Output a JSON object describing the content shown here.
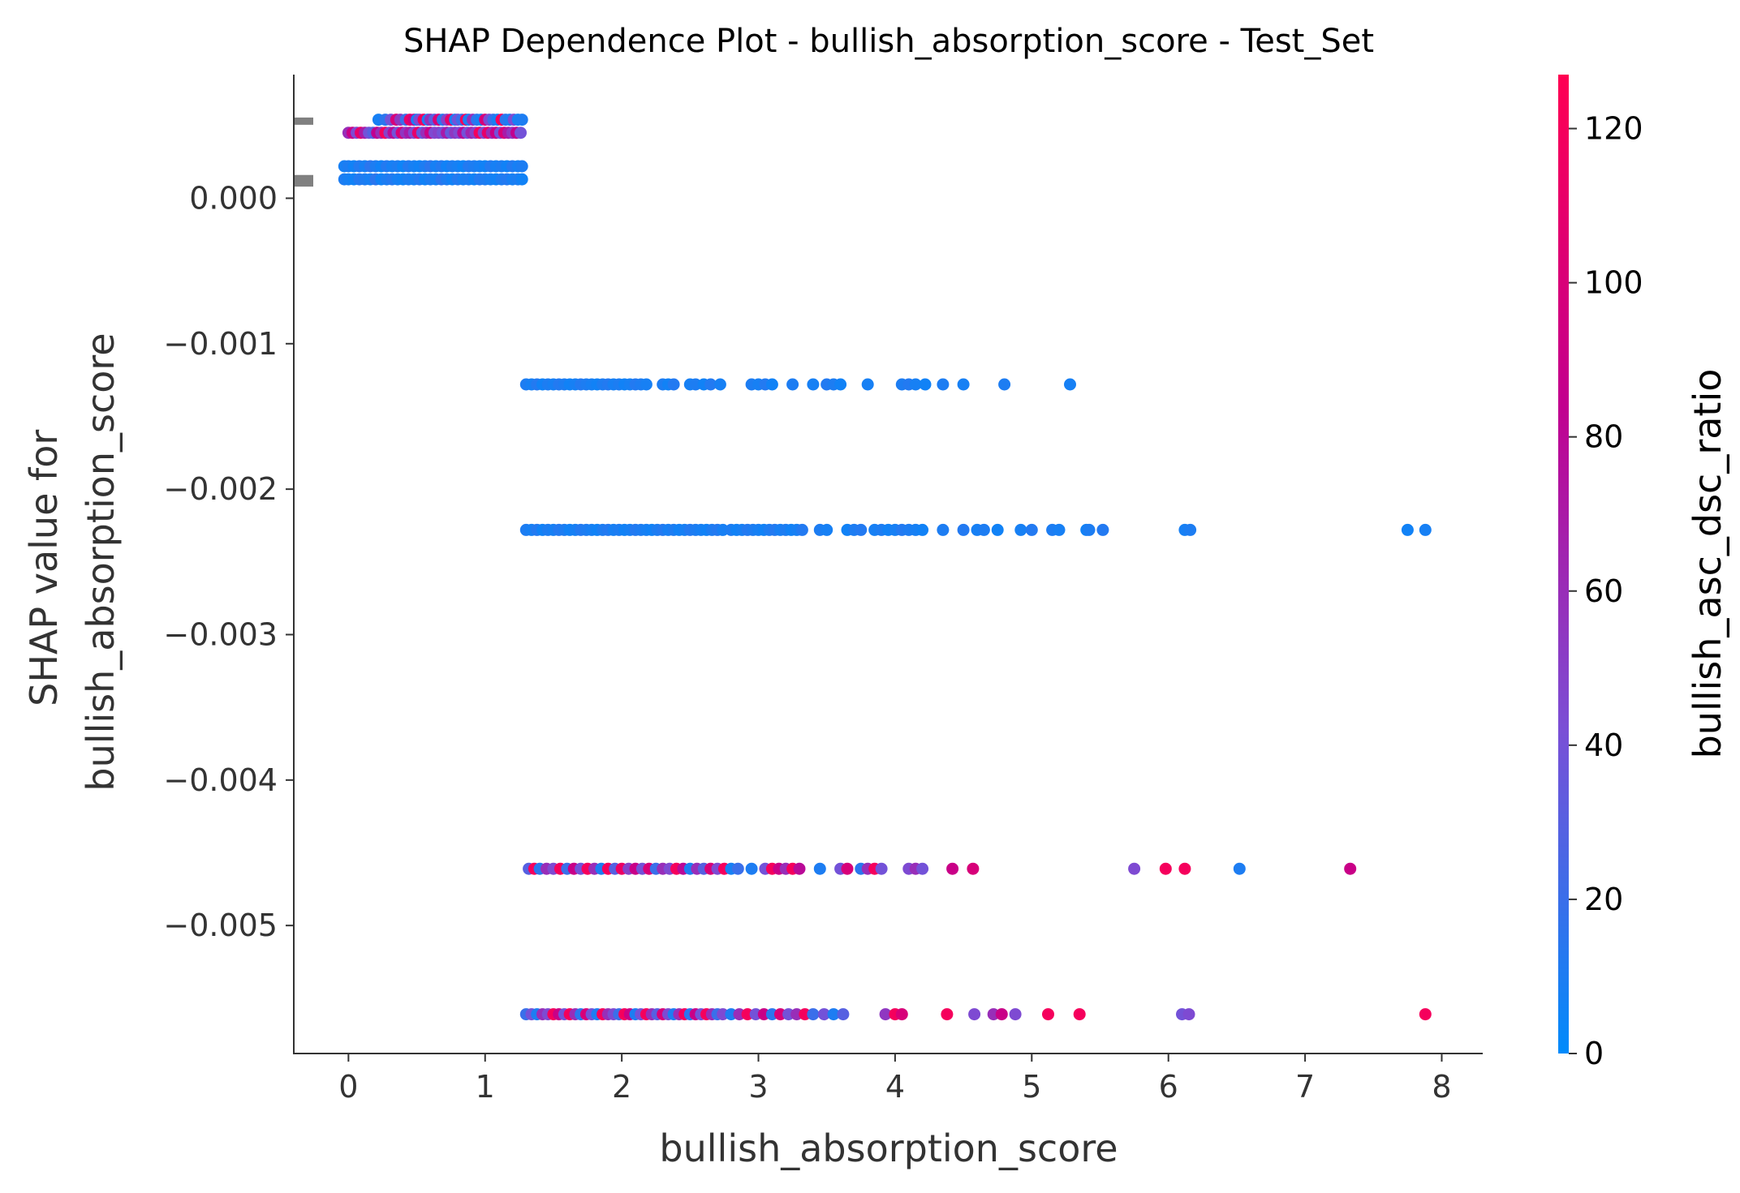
{
  "chart_data": {
    "type": "scatter",
    "title": "SHAP Dependence Plot - bullish_absorption_score - Test_Set",
    "xlabel": "bullish_absorption_score",
    "ylabel_lines": [
      "SHAP value for",
      "bullish_absorption_score"
    ],
    "xlim": [
      -0.4,
      8.3
    ],
    "ylim": [
      -0.00588,
      0.00085
    ],
    "x_ticks": [
      0,
      1,
      2,
      3,
      4,
      5,
      6,
      7,
      8
    ],
    "x_tick_labels": [
      "0",
      "1",
      "2",
      "3",
      "4",
      "5",
      "6",
      "7",
      "8"
    ],
    "y_ticks": [
      0.0,
      -0.001,
      -0.002,
      -0.003,
      -0.004,
      -0.005
    ],
    "y_tick_labels": [
      "0.000",
      "−0.001",
      "−0.002",
      "−0.003",
      "−0.004",
      "−0.005"
    ],
    "colorbar": {
      "label": "bullish_asc_dsc_ratio",
      "range": [
        0,
        127
      ],
      "ticks": [
        0,
        20,
        40,
        60,
        80,
        100,
        120
      ],
      "tick_labels": [
        "0",
        "20",
        "40",
        "60",
        "80",
        "100",
        "120"
      ],
      "colors": [
        "#008bfb",
        "#7a4fd6",
        "#c1008f",
        "#ff0052"
      ]
    },
    "histogram_marks": [
      {
        "y": 0.00053,
        "height": 5e-05
      },
      {
        "y": 0.00012,
        "height": 8e-05
      }
    ],
    "series": [
      {
        "y": 0.00054,
        "x": [
          0.22,
          0.27,
          0.31,
          0.35,
          0.38,
          0.42,
          0.45,
          0.48,
          0.5,
          0.52,
          0.55,
          0.58,
          0.6,
          0.63,
          0.66,
          0.69,
          0.72,
          0.75,
          0.78,
          0.8,
          0.83,
          0.86,
          0.88,
          0.91,
          0.94,
          0.97,
          1.0,
          1.03,
          1.06,
          1.09,
          1.12,
          1.15,
          1.18,
          1.21,
          1.24,
          1.27
        ],
        "c": [
          8,
          15,
          40,
          100,
          55,
          20,
          110,
          90,
          8,
          45,
          120,
          10,
          60,
          30,
          100,
          15,
          50,
          110,
          8,
          40,
          20,
          120,
          10,
          60,
          15,
          8,
          100,
          45,
          20,
          8,
          120,
          15,
          10,
          45,
          8,
          10
        ]
      },
      {
        "y": 0.00045,
        "x": [
          0.0,
          0.03,
          0.06,
          0.09,
          0.12,
          0.15,
          0.18,
          0.21,
          0.24,
          0.27,
          0.3,
          0.33,
          0.36,
          0.39,
          0.42,
          0.45,
          0.48,
          0.51,
          0.54,
          0.57,
          0.6,
          0.63,
          0.66,
          0.69,
          0.72,
          0.75,
          0.78,
          0.81,
          0.84,
          0.87,
          0.9,
          0.93,
          0.96,
          0.99,
          1.02,
          1.05,
          1.08,
          1.11,
          1.14,
          1.17,
          1.2,
          1.23,
          1.26
        ],
        "c": [
          60,
          90,
          45,
          110,
          70,
          40,
          30,
          85,
          60,
          120,
          50,
          80,
          40,
          100,
          55,
          70,
          45,
          110,
          35,
          60,
          90,
          45,
          50,
          40,
          70,
          35,
          55,
          45,
          80,
          40,
          65,
          50,
          120,
          45,
          110,
          60,
          90,
          40,
          100,
          70,
          55,
          85,
          40
        ]
      },
      {
        "y": 0.00022,
        "x": [
          -0.03,
          0.0,
          0.04,
          0.08,
          0.12,
          0.16,
          0.2,
          0.24,
          0.28,
          0.32,
          0.36,
          0.4,
          0.44,
          0.48,
          0.52,
          0.56,
          0.6,
          0.64,
          0.68,
          0.72,
          0.76,
          0.8,
          0.84,
          0.88,
          0.92,
          0.96,
          1.0,
          1.04,
          1.08,
          1.12,
          1.16,
          1.2,
          1.24,
          1.27
        ],
        "c": [
          8,
          10,
          6,
          12,
          8,
          15,
          10,
          6,
          12,
          8,
          10,
          5,
          12,
          8,
          6,
          10,
          15,
          8,
          12,
          6,
          10,
          8,
          5,
          12,
          10,
          8,
          6,
          12,
          8,
          10,
          6,
          12,
          8,
          10
        ]
      },
      {
        "y": 0.00013,
        "x": [
          -0.03,
          0.0,
          0.04,
          0.08,
          0.12,
          0.16,
          0.2,
          0.24,
          0.28,
          0.32,
          0.36,
          0.4,
          0.44,
          0.48,
          0.52,
          0.56,
          0.6,
          0.64,
          0.68,
          0.72,
          0.76,
          0.8,
          0.84,
          0.88,
          0.92,
          0.96,
          1.0,
          1.04,
          1.08,
          1.12,
          1.16,
          1.2,
          1.24,
          1.27
        ],
        "c": [
          10,
          8,
          6,
          12,
          10,
          8,
          15,
          6,
          10,
          12,
          8,
          6,
          10,
          8,
          12,
          6,
          10,
          8,
          15,
          10,
          6,
          12,
          8,
          10,
          6,
          12,
          10,
          8,
          6,
          10,
          12,
          8,
          10,
          6
        ]
      },
      {
        "y": -0.00128,
        "x": [
          1.3,
          1.34,
          1.38,
          1.42,
          1.46,
          1.5,
          1.54,
          1.58,
          1.62,
          1.66,
          1.7,
          1.74,
          1.78,
          1.82,
          1.86,
          1.9,
          1.94,
          1.98,
          2.02,
          2.06,
          2.1,
          2.14,
          2.18,
          2.3,
          2.34,
          2.38,
          2.5,
          2.54,
          2.6,
          2.65,
          2.72,
          2.95,
          3.0,
          3.05,
          3.1,
          3.25,
          3.4,
          3.5,
          3.55,
          3.6,
          3.8,
          4.05,
          4.1,
          4.15,
          4.22,
          4.35,
          4.5,
          4.8,
          5.28
        ],
        "c": [
          10,
          8,
          12,
          6,
          10,
          8,
          12,
          10,
          6,
          8,
          12,
          10,
          8,
          6,
          10,
          12,
          8,
          10,
          6,
          8,
          12,
          10,
          8,
          10,
          6,
          12,
          8,
          10,
          6,
          12,
          8,
          10,
          8,
          12,
          6,
          10,
          8,
          12,
          10,
          6,
          8,
          10,
          12,
          8,
          6,
          10,
          8,
          10,
          8
        ]
      },
      {
        "y": -0.00228,
        "x": [
          1.3,
          1.34,
          1.38,
          1.42,
          1.46,
          1.5,
          1.54,
          1.58,
          1.62,
          1.66,
          1.7,
          1.74,
          1.78,
          1.82,
          1.86,
          1.9,
          1.94,
          1.98,
          2.02,
          2.06,
          2.1,
          2.14,
          2.18,
          2.22,
          2.26,
          2.3,
          2.34,
          2.38,
          2.42,
          2.46,
          2.5,
          2.54,
          2.58,
          2.62,
          2.66,
          2.7,
          2.74,
          2.8,
          2.84,
          2.88,
          2.92,
          2.96,
          3.0,
          3.04,
          3.08,
          3.12,
          3.16,
          3.2,
          3.24,
          3.28,
          3.32,
          3.45,
          3.5,
          3.65,
          3.7,
          3.75,
          3.85,
          3.9,
          3.95,
          4.0,
          4.05,
          4.1,
          4.15,
          4.2,
          4.35,
          4.5,
          4.6,
          4.65,
          4.75,
          4.92,
          5.0,
          5.15,
          5.2,
          5.4,
          5.42,
          5.52,
          6.12,
          6.16,
          7.75,
          7.88
        ],
        "c": [
          10,
          8,
          12,
          6,
          10,
          8,
          12,
          10,
          6,
          8,
          12,
          10,
          8,
          6,
          10,
          12,
          8,
          10,
          6,
          8,
          12,
          10,
          8,
          6,
          10,
          12,
          8,
          10,
          6,
          8,
          12,
          10,
          8,
          6,
          10,
          12,
          8,
          10,
          6,
          8,
          12,
          10,
          8,
          6,
          10,
          12,
          8,
          10,
          6,
          8,
          12,
          10,
          8,
          6,
          10,
          12,
          8,
          10,
          6,
          8,
          12,
          10,
          8,
          6,
          10,
          12,
          8,
          10,
          6,
          8,
          12,
          10,
          8,
          6,
          10,
          12,
          8,
          10,
          6,
          8
        ]
      },
      {
        "y": -0.00461,
        "x": [
          1.32,
          1.36,
          1.4,
          1.45,
          1.5,
          1.55,
          1.6,
          1.65,
          1.7,
          1.75,
          1.8,
          1.85,
          1.9,
          1.95,
          2.0,
          2.05,
          2.1,
          2.15,
          2.2,
          2.25,
          2.3,
          2.35,
          2.4,
          2.45,
          2.5,
          2.55,
          2.6,
          2.65,
          2.7,
          2.75,
          2.8,
          2.85,
          2.95,
          3.05,
          3.1,
          3.15,
          3.2,
          3.25,
          3.3,
          3.45,
          3.6,
          3.65,
          3.75,
          3.8,
          3.85,
          3.9,
          4.1,
          4.15,
          4.2,
          4.42,
          4.57,
          5.75,
          5.98,
          6.12,
          6.52,
          7.33
        ],
        "c": [
          30,
          120,
          15,
          60,
          45,
          120,
          20,
          90,
          40,
          120,
          60,
          10,
          120,
          30,
          115,
          50,
          90,
          40,
          100,
          20,
          60,
          45,
          120,
          80,
          10,
          60,
          30,
          100,
          45,
          120,
          8,
          20,
          10,
          40,
          120,
          90,
          60,
          120,
          80,
          10,
          40,
          100,
          15,
          60,
          120,
          40,
          45,
          60,
          40,
          90,
          100,
          45,
          120,
          120,
          10,
          90
        ]
      },
      {
        "y": -0.00561,
        "x": [
          1.3,
          1.34,
          1.38,
          1.42,
          1.46,
          1.5,
          1.54,
          1.58,
          1.62,
          1.66,
          1.7,
          1.74,
          1.78,
          1.82,
          1.86,
          1.9,
          1.94,
          1.98,
          2.02,
          2.06,
          2.1,
          2.14,
          2.18,
          2.22,
          2.26,
          2.3,
          2.34,
          2.38,
          2.42,
          2.46,
          2.5,
          2.54,
          2.58,
          2.62,
          2.66,
          2.7,
          2.74,
          2.8,
          2.86,
          2.92,
          2.98,
          3.04,
          3.1,
          3.16,
          3.22,
          3.28,
          3.34,
          3.4,
          3.48,
          3.55,
          3.62,
          3.93,
          4.0,
          4.05,
          4.38,
          4.58,
          4.72,
          4.78,
          4.88,
          5.12,
          5.35,
          6.1,
          6.15,
          7.88
        ],
        "c": [
          20,
          40,
          10,
          60,
          45,
          120,
          90,
          40,
          120,
          60,
          15,
          100,
          40,
          10,
          120,
          60,
          45,
          20,
          120,
          90,
          10,
          40,
          120,
          60,
          30,
          100,
          45,
          10,
          60,
          120,
          15,
          90,
          40,
          120,
          60,
          20,
          45,
          10,
          60,
          120,
          40,
          90,
          15,
          100,
          40,
          60,
          120,
          20,
          40,
          10,
          30,
          55,
          120,
          100,
          120,
          45,
          60,
          90,
          45,
          120,
          120,
          40,
          45,
          120
        ]
      }
    ]
  }
}
